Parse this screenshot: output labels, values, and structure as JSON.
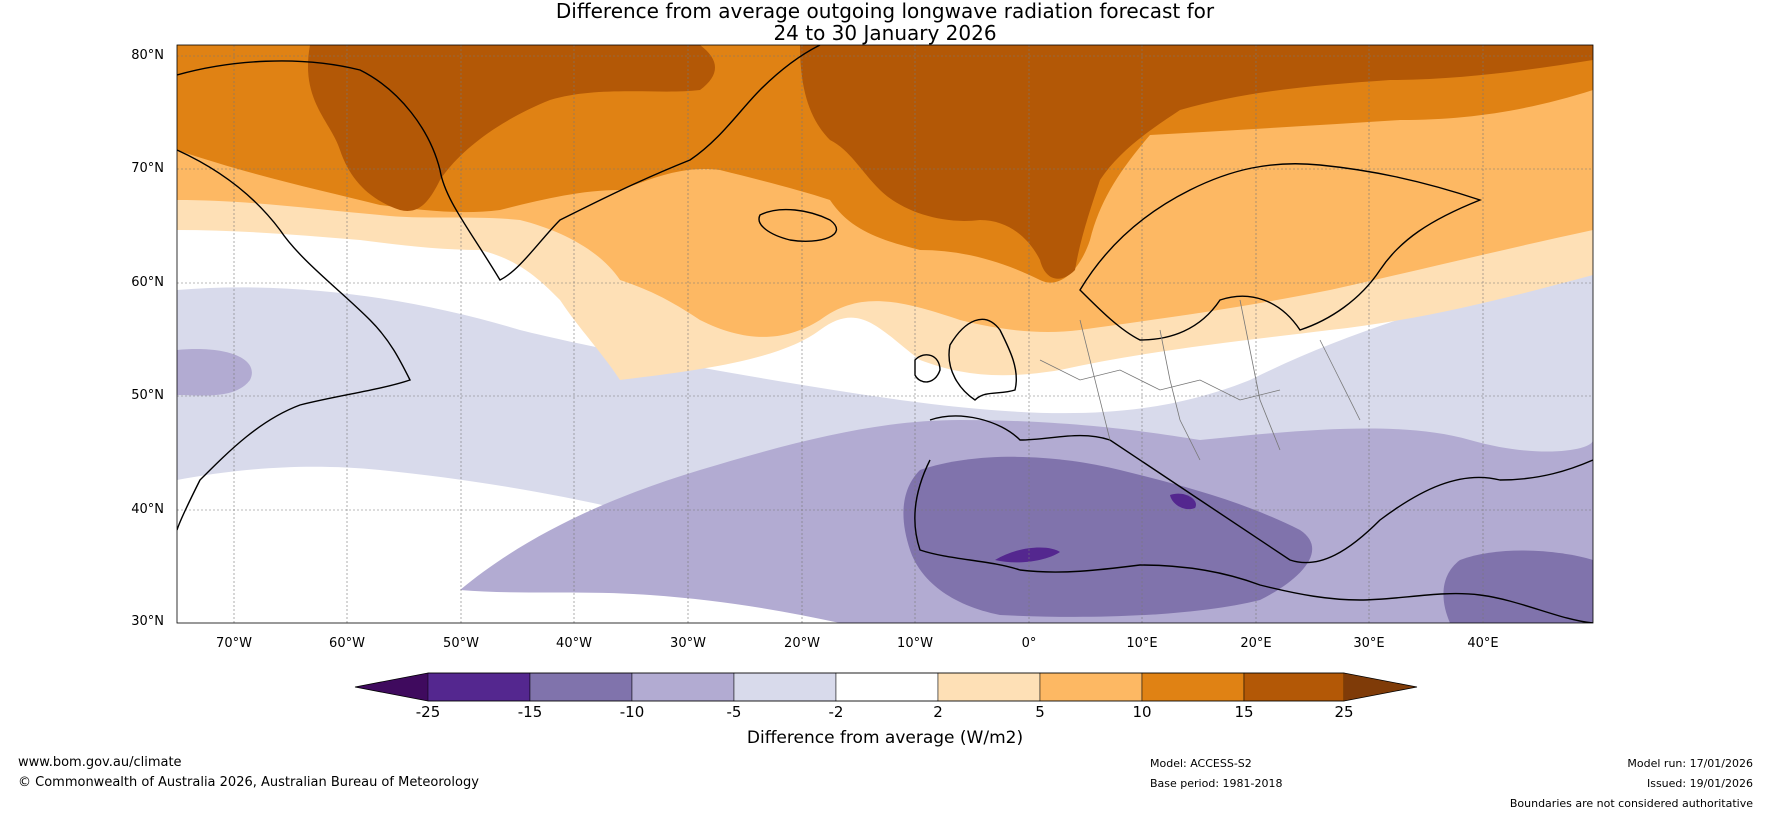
{
  "title": {
    "line1": "Difference from average outgoing longwave radiation forecast for",
    "line2": "24 to 30 January 2026"
  },
  "lat_labels": [
    "80°N",
    "70°N",
    "60°N",
    "50°N",
    "40°N",
    "30°N"
  ],
  "lon_labels": [
    "70°W",
    "60°W",
    "50°W",
    "40°W",
    "30°W",
    "20°W",
    "10°W",
    "0°",
    "10°E",
    "20°E",
    "30°E",
    "40°E"
  ],
  "colorbar": {
    "title": "Difference from average (W/m2)",
    "ticks": [
      "-25",
      "-15",
      "-10",
      "-5",
      "-2",
      "2",
      "5",
      "10",
      "15",
      "25"
    ],
    "colors": [
      "#3f0a5e",
      "#54278f",
      "#8073ac",
      "#b2abd2",
      "#d8daeb",
      "#ffffff",
      "#fee0b6",
      "#fdb863",
      "#e08214",
      "#b35806",
      "#7f3b08"
    ]
  },
  "footer": {
    "website": "www.bom.gov.au/climate",
    "copyright": "© Commonwealth of Australia 2026, Australian Bureau of Meteorology",
    "model": "Model: ACCESS-S2",
    "base_period": "Base period: 1981-2018",
    "model_run": "Model run: 17/01/2026",
    "issued": "Issued: 19/01/2026",
    "disclaimer": "Boundaries are not considered authoritative"
  }
}
